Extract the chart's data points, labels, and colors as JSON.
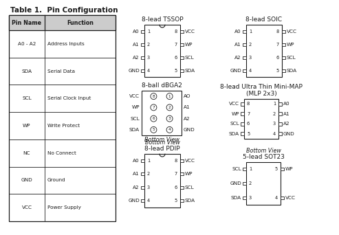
{
  "title_table": "Table 1.  Pin Configuration",
  "table_headers": [
    "Pin Name",
    "Function"
  ],
  "table_rows": [
    [
      "A0 - A2",
      "Address Inputs"
    ],
    [
      "SDA",
      "Serial Data"
    ],
    [
      "SCL",
      "Serial Clock Input"
    ],
    [
      "WP",
      "Write Protect"
    ],
    [
      "NC",
      "No Connect"
    ],
    [
      "GND",
      "Ground"
    ],
    [
      "VCC",
      "Power Supply"
    ]
  ],
  "pkg_tssop_title": "8-lead TSSOP",
  "pkg_soic_title": "8-lead SOIC",
  "pkg_dbga_title": "8-ball dBGA2",
  "pkg_mlp_title": "8-lead Ultra Thin Mini-MAP\n(MLP 2x3)",
  "pkg_pdip_title": "8-lead PDIP",
  "pkg_sot_title": "5-lead SOT23",
  "pkg_pdip_label": "Bottom View",
  "pkg_sot_label": "Bottom View",
  "pkg_dbga_label": "Bottom View",
  "left_pins_8lead": [
    "A0",
    "A1",
    "A2",
    "GND"
  ],
  "left_nums_8lead": [
    "1",
    "2",
    "3",
    "4"
  ],
  "right_pins_8lead": [
    "VCC",
    "WP",
    "SCL",
    "SDA"
  ],
  "right_nums_8lead": [
    "8",
    "7",
    "6",
    "5"
  ],
  "dbga_left": [
    "VCC",
    "WP",
    "SCL",
    "SDA"
  ],
  "dbga_left_nums": [
    "8",
    "7",
    "6",
    "5"
  ],
  "dbga_right": [
    "AO",
    "A1",
    "A2",
    "GND"
  ],
  "dbga_right_nums": [
    "1",
    "2",
    "3",
    "4"
  ],
  "mlp_left": [
    "VCC",
    "WP",
    "SCL",
    "SDA"
  ],
  "mlp_left_nums": [
    "8",
    "7",
    "6",
    "5"
  ],
  "mlp_right": [
    "A0",
    "A1",
    "A2",
    "GND"
  ],
  "mlp_right_nums": [
    "1",
    "2",
    "3",
    "4"
  ],
  "sot_left": [
    "SCL",
    "GND",
    "SDA"
  ],
  "sot_left_nums": [
    "1",
    "2",
    "3"
  ],
  "sot_right": [
    "WP",
    "VCC"
  ],
  "sot_right_nums": [
    "5",
    "4"
  ],
  "bg_color": "#ffffff",
  "text_color": "#1a1a1a",
  "box_color": "#1a1a1a",
  "font_size_title": 6.5,
  "font_size_label": 5.8,
  "font_size_pin": 5.2,
  "font_size_table_title": 7.5,
  "font_size_num": 4.8
}
